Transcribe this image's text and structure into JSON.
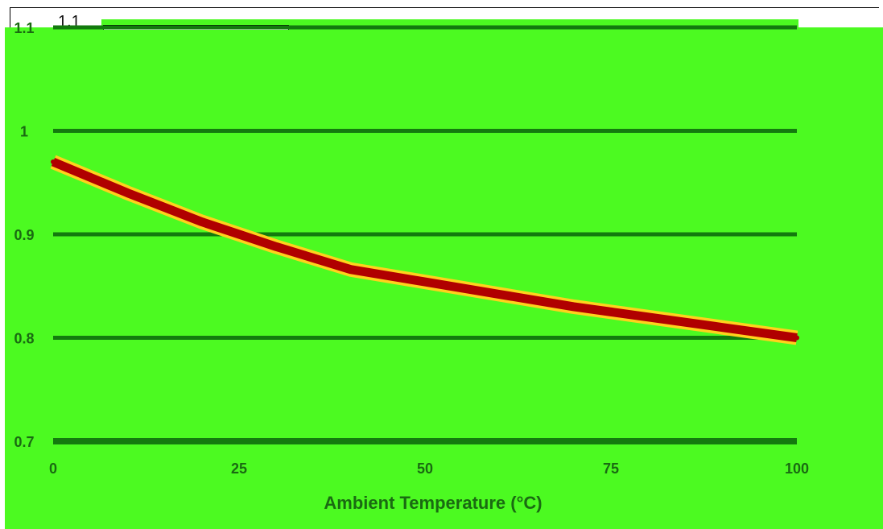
{
  "frame_label": "1.1",
  "chart_data": {
    "type": "line",
    "title": "",
    "xlabel": "Ambient Temperature (°C)",
    "ylabel": "",
    "xlim": [
      0,
      100
    ],
    "ylim": [
      0.7,
      1.1
    ],
    "x_ticks": [
      0,
      25,
      50,
      75,
      100
    ],
    "y_ticks": [
      0.7,
      0.8,
      0.9,
      1,
      1.1
    ],
    "x_tick_labels": [
      "0",
      "25",
      "50",
      "75",
      "100"
    ],
    "y_tick_labels": [
      "0.7",
      "0.8",
      "0.9",
      "1",
      "1.1"
    ],
    "grid": true,
    "series": [
      {
        "x": [
          0,
          10,
          20,
          25,
          30,
          40,
          50,
          60,
          70,
          75,
          80,
          90,
          100
        ],
        "y": [
          0.97,
          0.94,
          0.912,
          0.9,
          0.888,
          0.866,
          0.854,
          0.842,
          0.83,
          0.825,
          0.82,
          0.81,
          0.8
        ]
      }
    ],
    "colors": {
      "background": "#4cfa21",
      "grid": "#137a0e",
      "line": "#b00000",
      "line_glow": "#ffd21c",
      "text": "#1a6a12"
    }
  }
}
